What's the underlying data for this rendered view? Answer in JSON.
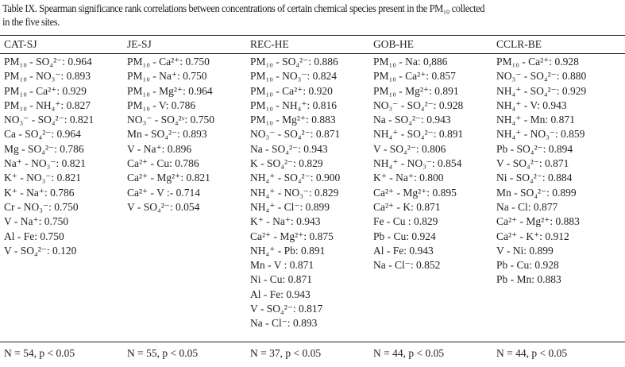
{
  "caption_line1": "Table IX. Spearman significance rank correlations between concentrations of certain chemical species present in the PM₁₀ collected",
  "caption_line2": "in the five sites.",
  "columns": [
    {
      "header": "CAT-SJ",
      "rows": [
        "PM₁₀ - SO₄²⁻: 0.964",
        "PM₁₀ - NO₃⁻: 0.893",
        "PM₁₀ - Ca²⁺: 0.929",
        "PM₁₀ - NH₄⁺: 0.827",
        "NO₃⁻ - SO₄²⁻: 0.821",
        "Ca - SO₄²⁻: 0.964",
        "Mg - SO₄²⁻: 0.786",
        "Na⁺ - NO₃⁻: 0.821",
        "K⁺ - NO₃⁻: 0.821",
        "K⁺ - Na⁺: 0.786",
        "Cr - NO₃⁻: 0.750",
        "V - Na⁺: 0.750",
        "Al - Fe: 0.750",
        "V - SO₄²⁻: 0.120"
      ],
      "footer": "N = 54, p < 0.05"
    },
    {
      "header": "JE-SJ",
      "rows": [
        "PM₁₀ - Ca²⁺: 0.750",
        "PM₁₀ - Na⁺: 0.750",
        "PM₁₀ - Mg²⁺: 0.964",
        "PM₁₀ - V: 0.786",
        "NO₃⁻ - SO₄²ᵛ: 0.750",
        "Mn - SO₄²⁻: 0.893",
        "V - Na⁺: 0.896",
        "Ca²⁺ - Cu: 0.786",
        "Ca²⁺ - Mg²⁺: 0.821",
        "Ca²⁺ - V :- 0.714",
        "V - SO₄²⁻: 0.054"
      ],
      "footer": "N = 55, p < 0.05"
    },
    {
      "header": "REC-HE",
      "rows": [
        "PM₁₀ - SO₄²⁻: 0.886",
        "PM₁₀ - NO₃⁻: 0.824",
        "PM₁₀ - Ca²⁺: 0.920",
        "PM₁₀ - NH₄⁺: 0.816",
        "PM₁₀ - Mg²⁺: 0.883",
        "NO₃⁻ - SO₄²⁻: 0.871",
        "Na - SO₄²⁻: 0.943",
        "K - SO₄²⁻: 0.829",
        "NH₄⁺ - SO₄²⁻: 0.900",
        "NH₄⁺ - NO₃⁻: 0.829",
        "NH₄⁺ - Cl⁻: 0.899",
        "K⁺ - Na⁺: 0.943",
        "Ca²⁺ - Mg²⁺: 0.875",
        "NH₄⁺ - Pb: 0.891",
        "Mn - V : 0.871",
        "Ni - Cu: 0.871",
        "Al - Fe: 0.943",
        "V - SO₄²⁻: 0.817",
        "Na - Cl⁻: 0.893"
      ],
      "footer": "N = 37, p < 0.05"
    },
    {
      "header": "GOB-HE",
      "rows": [
        "PM₁₀ - Na: 0,886",
        "PM₁₀ - Ca²⁺: 0.857",
        "PM₁₀ - Mg²⁺: 0.891",
        "NO₃⁻ - SO₄²⁻: 0.928",
        "Na - SO₄²⁻: 0.943",
        "NH₄⁺ - SO₄²⁻: 0.891",
        "V - SO₄²⁻: 0.806",
        "NH₄⁺ - NO₃⁻: 0.854",
        "K⁺ - Na⁺: 0.800",
        "Ca²⁺ - Mg²⁺: 0.895",
        "Ca²⁺ - K: 0.871",
        "Fe - Cu : 0.829",
        "Pb - Cu: 0.924",
        "Al - Fe: 0.943",
        "Na - Cl⁻: 0.852"
      ],
      "footer": "N = 44, p < 0.05"
    },
    {
      "header": "CCLR-BE",
      "rows": [
        "PM₁₀ - Ca²⁺: 0.928",
        "NO₃⁻ - SO₄²⁻: 0.880",
        "NH₄⁺ - SO₄²⁻: 0.929",
        "NH₄⁺ - V: 0.943",
        "NH₄⁺ - Mn: 0.871",
        "NH₄⁺ - NO₃⁻: 0.859",
        "Pb - SO₄²⁻: 0.894",
        "V - SO₄²⁻: 0.871",
        "Ni - SO₄²⁻: 0.884",
        "Mn - SO₄²⁻: 0.899",
        "Na - Cl: 0.877",
        "Ca²⁺ - Mg²⁺: 0.883",
        "Ca²⁺ - K⁺: 0.912",
        "V - Ni: 0.899",
        "Pb - Cu: 0.928",
        "Pb - Mn: 0.883"
      ],
      "footer": "N = 44, p < 0.05"
    }
  ]
}
